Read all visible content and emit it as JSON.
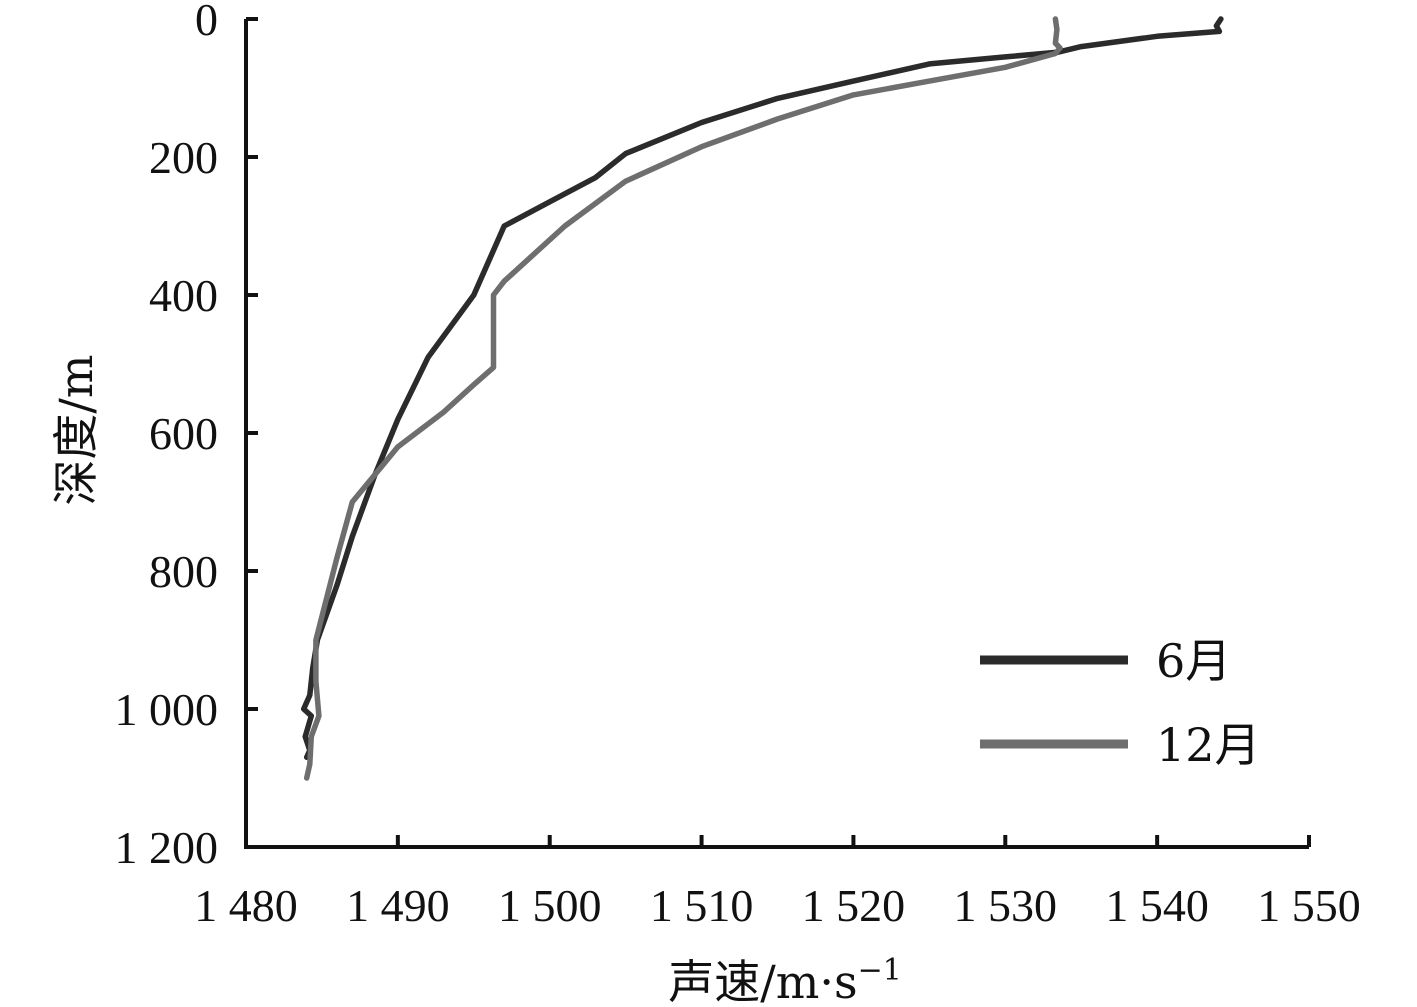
{
  "chart_data": {
    "type": "line",
    "title": "",
    "xlabel": "声速/m·s",
    "xlabel_superscript": "−1",
    "ylabel": "深度/m",
    "xlim": [
      1480,
      1550
    ],
    "ylim": [
      0,
      1200
    ],
    "y_inverted": true,
    "x_axis_position": "bottom",
    "x_ticks": [
      1480,
      1490,
      1500,
      1510,
      1520,
      1530,
      1540,
      1550
    ],
    "x_tick_labels": [
      "1 480",
      "1 490",
      "1 500",
      "1 510",
      "1 520",
      "1 530",
      "1 540",
      "1 550"
    ],
    "y_ticks": [
      0,
      200,
      400,
      600,
      800,
      1000,
      1200
    ],
    "y_tick_labels": [
      "0",
      "200",
      "400",
      "600",
      "800",
      "1 000",
      "1 200"
    ],
    "grid": false,
    "legend_position": "bottom-right",
    "series": [
      {
        "name": "6月",
        "color": "#2b2b2b",
        "points": [
          [
            1544.2,
            0
          ],
          [
            1543.9,
            10
          ],
          [
            1544.1,
            18
          ],
          [
            1540,
            25
          ],
          [
            1535,
            40
          ],
          [
            1533.5,
            48
          ],
          [
            1530,
            55
          ],
          [
            1525,
            65
          ],
          [
            1520,
            90
          ],
          [
            1515,
            115
          ],
          [
            1510,
            150
          ],
          [
            1505,
            195
          ],
          [
            1503,
            230
          ],
          [
            1500,
            265
          ],
          [
            1497,
            300
          ],
          [
            1495,
            400
          ],
          [
            1492,
            490
          ],
          [
            1490,
            580
          ],
          [
            1488.5,
            660
          ],
          [
            1487,
            750
          ],
          [
            1486,
            820
          ],
          [
            1484.7,
            900
          ],
          [
            1484.4,
            940
          ],
          [
            1484.2,
            980
          ],
          [
            1483.8,
            1000
          ],
          [
            1484.3,
            1010
          ],
          [
            1483.9,
            1040
          ],
          [
            1484.2,
            1060
          ],
          [
            1484,
            1070
          ]
        ]
      },
      {
        "name": "12月",
        "color": "#6e6e6e",
        "points": [
          [
            1533.3,
            0
          ],
          [
            1533.4,
            15
          ],
          [
            1533.3,
            35
          ],
          [
            1533.6,
            42
          ],
          [
            1533.3,
            50
          ],
          [
            1530,
            70
          ],
          [
            1525,
            90
          ],
          [
            1520,
            110
          ],
          [
            1515,
            145
          ],
          [
            1510,
            185
          ],
          [
            1505,
            235
          ],
          [
            1501,
            300
          ],
          [
            1497,
            380
          ],
          [
            1496.3,
            400
          ],
          [
            1496.3,
            505
          ],
          [
            1495,
            530
          ],
          [
            1493,
            570
          ],
          [
            1490,
            620
          ],
          [
            1487,
            700
          ],
          [
            1486,
            780
          ],
          [
            1484.6,
            900
          ],
          [
            1484.6,
            960
          ],
          [
            1484.8,
            1010
          ],
          [
            1484.3,
            1040
          ],
          [
            1484.2,
            1080
          ],
          [
            1484,
            1100
          ]
        ]
      }
    ]
  }
}
